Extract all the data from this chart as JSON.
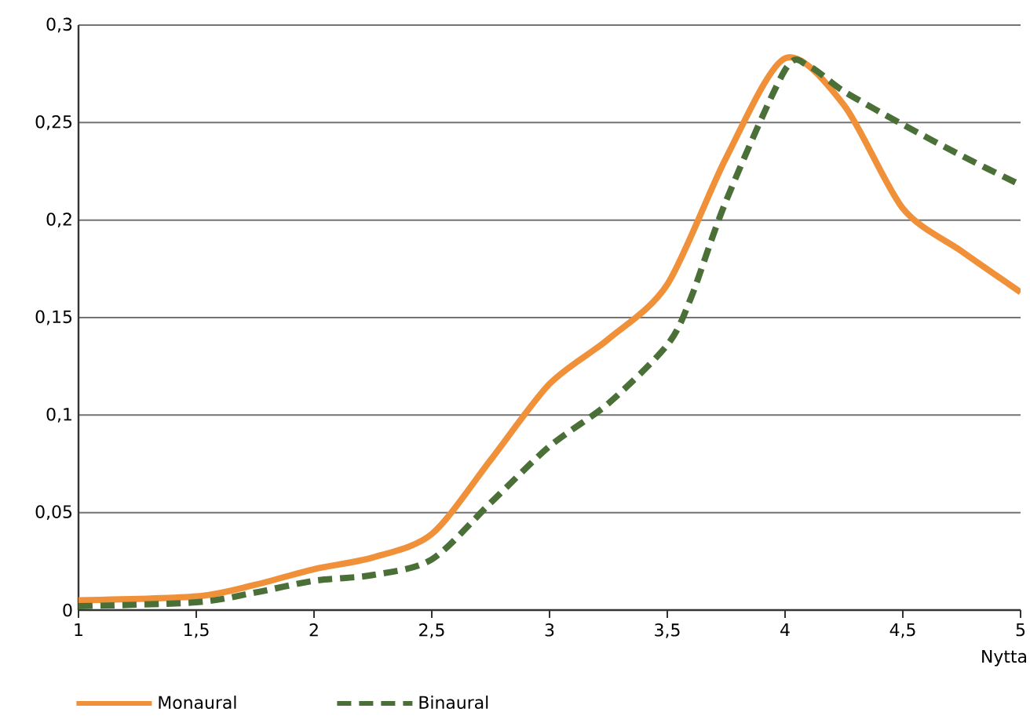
{
  "chart_data": {
    "type": "line",
    "xlabel": "Nytta",
    "xlim": [
      1,
      5
    ],
    "ylim": [
      0,
      0.3
    ],
    "xticks": [
      1,
      {
        "value": 1.5,
        "label": "1,5"
      },
      2,
      {
        "value": 2.5,
        "label": "2,5"
      },
      3,
      {
        "value": 3.5,
        "label": "3,5"
      },
      4,
      {
        "value": 4.5,
        "label": "4,5"
      },
      5
    ],
    "yticks": [
      0,
      {
        "value": 0.05,
        "label": "0,05"
      },
      {
        "value": 0.1,
        "label": "0,1"
      },
      {
        "value": 0.15,
        "label": "0,15"
      },
      {
        "value": 0.2,
        "label": "0,2"
      },
      {
        "value": 0.25,
        "label": "0,25"
      },
      {
        "value": 0.3,
        "label": "0,3"
      }
    ],
    "grid": "y",
    "legend": "bottom",
    "series": [
      {
        "name": "Monaural",
        "color": "#f0913a",
        "line_style": "solid",
        "x": [
          1,
          1.5,
          1.75,
          2,
          2.25,
          2.5,
          2.75,
          3,
          3.25,
          3.5,
          3.75,
          4,
          4.25,
          4.5,
          4.75,
          5
        ],
        "values": [
          0.005,
          0.007,
          0.013,
          0.021,
          0.027,
          0.039,
          0.077,
          0.116,
          0.139,
          0.167,
          0.232,
          0.283,
          0.259,
          0.206,
          0.184,
          0.163
        ]
      },
      {
        "name": "Binaural",
        "color": "#4a7038",
        "line_style": "dashed",
        "x": [
          1,
          1.5,
          1.75,
          2,
          2.25,
          2.5,
          2.75,
          3,
          3.25,
          3.5,
          3.6,
          3.75,
          4,
          4.1,
          4.25,
          4.5,
          4.75,
          5
        ],
        "values": [
          0.002,
          0.004,
          0.009,
          0.015,
          0.018,
          0.026,
          0.055,
          0.084,
          0.106,
          0.136,
          0.16,
          0.21,
          0.277,
          0.279,
          0.266,
          0.249,
          0.233,
          0.218
        ]
      }
    ]
  }
}
